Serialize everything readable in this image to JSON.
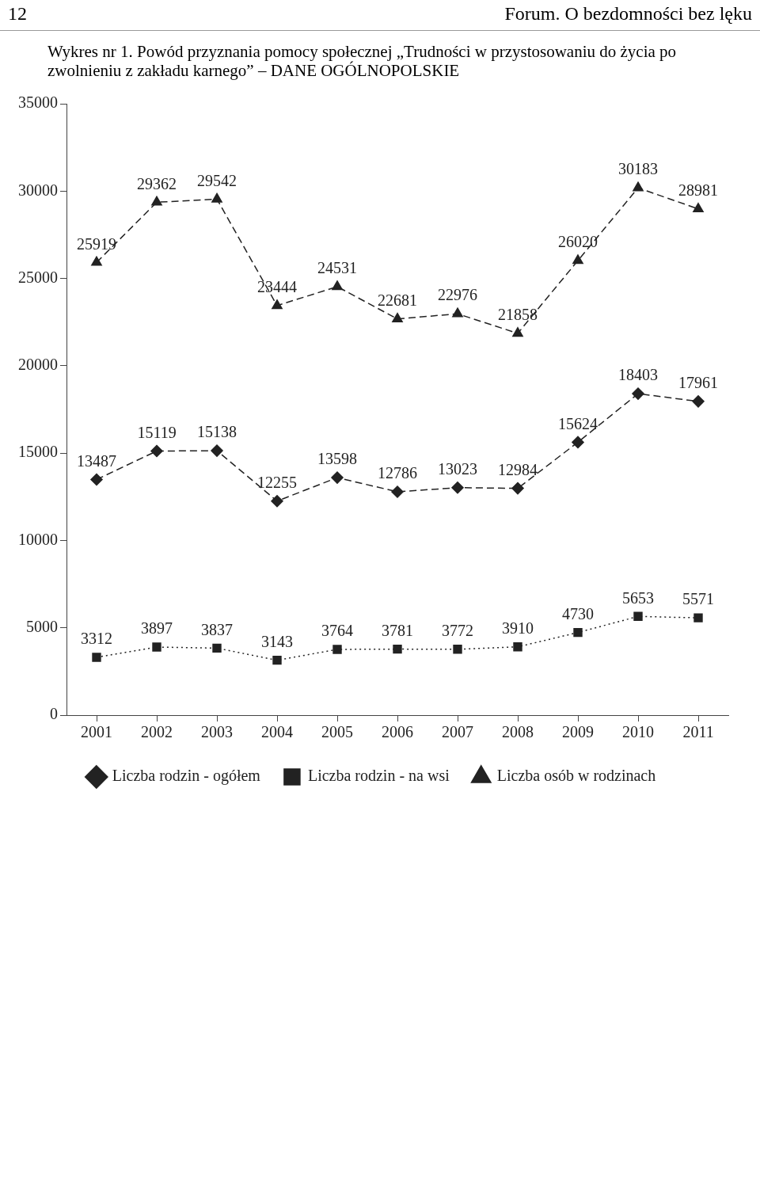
{
  "chart_data": {
    "type": "line",
    "title": "Wykres nr 1. Powód przyznania pomocy społecznej „Trudności w przystosowaniu do życia po zwolnieniu z zakładu karnego” – DANE OGÓLNOPOLSKIE",
    "annotations": [
      "12",
      "Forum. O bezdomności bez lęku"
    ],
    "categories": [
      "2001",
      "2002",
      "2003",
      "2004",
      "2005",
      "2006",
      "2007",
      "2008",
      "2009",
      "2010",
      "2011"
    ],
    "series": [
      {
        "name": "Liczba rodzin - ogółem",
        "color": "#222222",
        "marker": "diamond",
        "line_style": "dashed",
        "values": [
          13487,
          15119,
          15138,
          12255,
          13598,
          12786,
          13023,
          12984,
          15624,
          18403,
          17961
        ]
      },
      {
        "name": "Liczba rodzin - na wsi",
        "color": "#222222",
        "marker": "square",
        "line_style": "dotted",
        "values": [
          3312,
          3897,
          3837,
          3143,
          3764,
          3781,
          3772,
          3910,
          4730,
          5653,
          5571
        ]
      },
      {
        "name": "Liczba osób w rodzinach",
        "color": "#222222",
        "marker": "triangle",
        "line_style": "dashed",
        "values": [
          25919,
          29362,
          29542,
          23444,
          24531,
          22681,
          22976,
          21858,
          26020,
          30183,
          28981
        ]
      }
    ],
    "ylim": [
      0,
      35000
    ],
    "yticks": [
      0,
      5000,
      10000,
      15000,
      20000,
      25000,
      30000,
      35000
    ],
    "grid": false,
    "legend": "bottom",
    "data_labels": true
  }
}
